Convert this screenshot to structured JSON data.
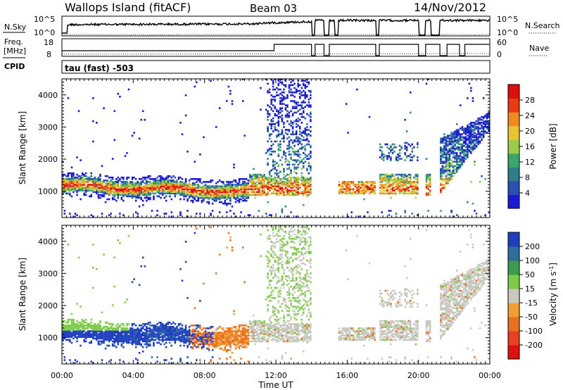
{
  "header": {
    "site": "Wallops Island (fitACF)",
    "beam": "Beam 03",
    "date": "14/Nov/2012"
  },
  "strip": {
    "nsky_label": "N.Sky",
    "nsky_ticks": [
      "10^5",
      "10^0"
    ],
    "nsearch_label": "N.Search",
    "nsearch_ticks": [
      "10^5",
      "10^0"
    ],
    "freq_label": "Freq.",
    "freq_unit": "[MHz]",
    "freq_ticks": [
      "18",
      "8"
    ],
    "nave_label": "Nave",
    "nave_ticks": [
      "60",
      "0"
    ],
    "cpid_label": "CPID",
    "cpid_value": "tau (fast) -503"
  },
  "chart_data": [
    {
      "type": "heatmap",
      "id": "power",
      "ylabel": "Slant Range [km]",
      "ylim": [
        180,
        4500
      ],
      "yticks": [
        "4000",
        "3000",
        "2000",
        "1000"
      ],
      "xlim_hours": [
        0,
        24
      ],
      "colorbar_label": "Power [dB]",
      "colorbar_ticks": [
        "28",
        "24",
        "20",
        "16",
        "12",
        "8",
        "4"
      ],
      "colors": [
        "#1a1ad6",
        "#2a4fb0",
        "#2e7f8a",
        "#3aa66a",
        "#9ccc4a",
        "#e8c432",
        "#f08a1e",
        "#e63c14",
        "#dd0f0f"
      ]
    },
    {
      "type": "heatmap",
      "id": "velocity",
      "ylabel": "Slant Range [km]",
      "ylim": [
        180,
        4500
      ],
      "yticks": [
        "4000",
        "3000",
        "2000",
        "1000"
      ],
      "xlim_hours": [
        0,
        24
      ],
      "xlabel": "Time UT",
      "xticks": [
        "00:00",
        "04:00",
        "08:00",
        "12:00",
        "16:00",
        "20:00",
        "00:00"
      ],
      "colorbar_label": "Velocity [m s",
      "colorbar_unit_sup": "-1",
      "colorbar_unit_end": "]",
      "colorbar_ticks": [
        "200",
        "100",
        "50",
        "15",
        "-15",
        "-50",
        "-100",
        "-200"
      ],
      "colors": [
        "#1f3fc0",
        "#2f6e9a",
        "#3d9a4e",
        "#7dcc48",
        "#c8c8c0",
        "#f0a030",
        "#e87020",
        "#e84020",
        "#e01010"
      ]
    }
  ]
}
